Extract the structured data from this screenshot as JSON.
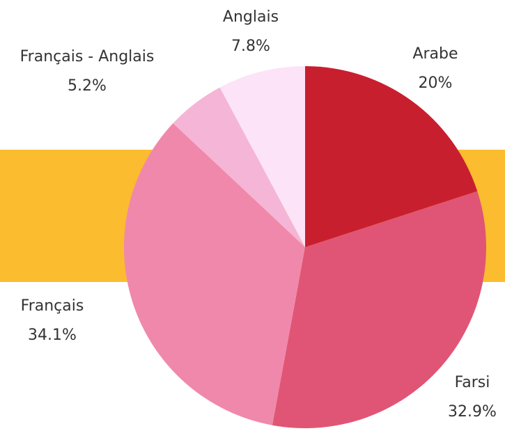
{
  "chart_data": {
    "type": "pie",
    "categories": [
      "Arabe",
      "Farsi",
      "Français",
      "Français - Anglais",
      "Anglais"
    ],
    "values": [
      20,
      32.9,
      34.1,
      5.2,
      7.8
    ],
    "value_labels": [
      "20%",
      "32.9%",
      "34.1%",
      "5.2%",
      "7.8%"
    ],
    "colors": [
      "#c81f2e",
      "#e05575",
      "#f088ab",
      "#f5b5d6",
      "#fde3f7"
    ]
  }
}
